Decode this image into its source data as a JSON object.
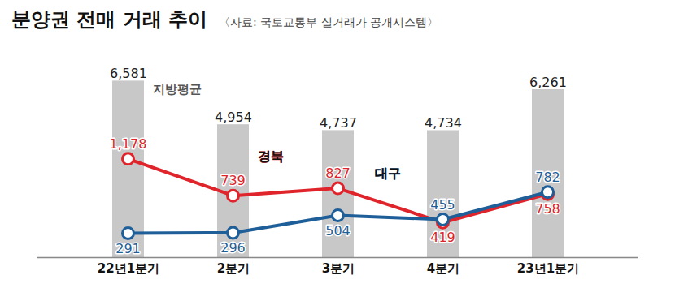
{
  "chart_data": {
    "type": "bar",
    "title": "분양권 전매 거래 추이",
    "source": "〈자료: 국토교통부 실거래가 공개시스템〉",
    "categories": [
      "22년1분기",
      "2분기",
      "3분기",
      "4분기",
      "23년1분기"
    ],
    "series": [
      {
        "name": "지방평균",
        "type": "bar",
        "color": "#c8c8c8",
        "values": [
          6581,
          4954,
          4737,
          4734,
          6261
        ],
        "value_labels": [
          "6,581",
          "4,954",
          "4,737",
          "4,734",
          "6,261"
        ]
      },
      {
        "name": "경북",
        "type": "line",
        "axis": "y2",
        "color": "#e0242b",
        "marker": "circle",
        "values": [
          1178,
          739,
          827,
          419,
          758
        ],
        "value_labels": [
          "1,178",
          "739",
          "827",
          "419",
          "758"
        ]
      },
      {
        "name": "대구",
        "type": "line",
        "axis": "y2",
        "color": "#1f5f99",
        "marker": "circle",
        "values": [
          291,
          296,
          504,
          455,
          782
        ]
      }
    ],
    "ylim": [
      0,
      7500
    ],
    "y2lim": [
      0,
      2400
    ],
    "data_labels": true,
    "tick_labels": "x",
    "grid": false
  }
}
